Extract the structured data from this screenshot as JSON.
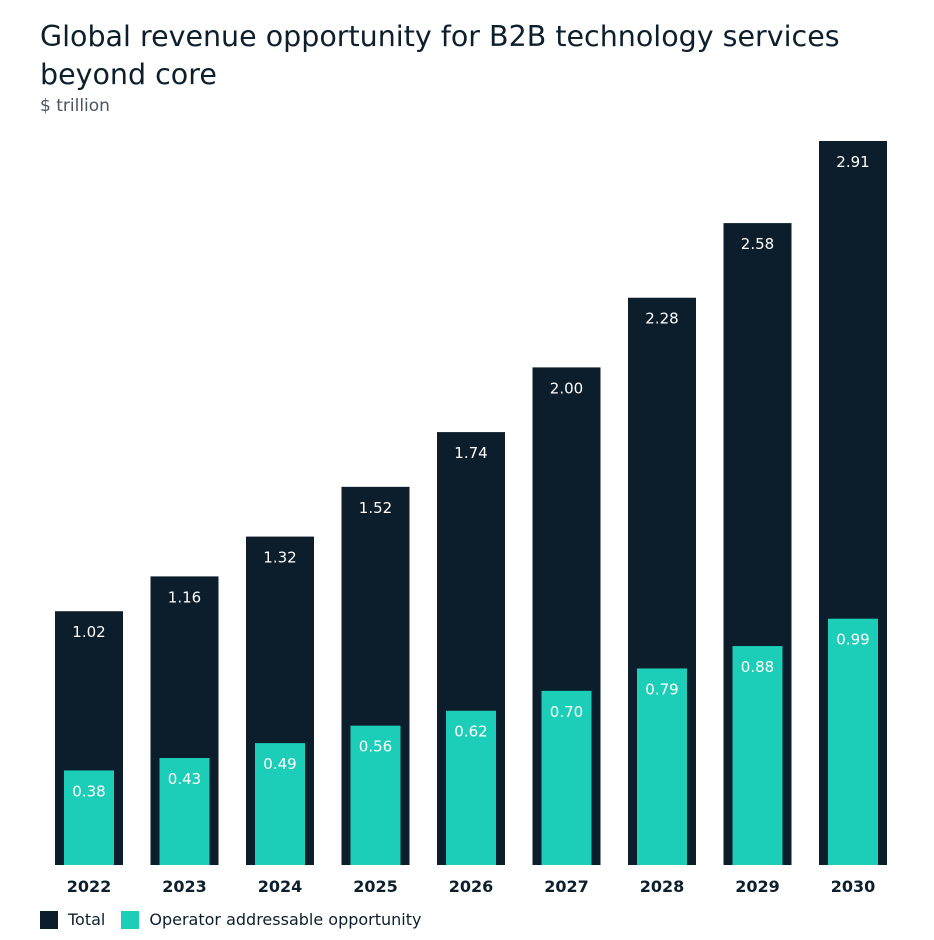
{
  "chart_data": {
    "type": "bar",
    "title": "Global revenue opportunity for B2B technology services beyond core",
    "subtitle": "$ trillion",
    "categories": [
      "2022",
      "2023",
      "2024",
      "2025",
      "2026",
      "2027",
      "2028",
      "2029",
      "2030"
    ],
    "series": [
      {
        "name": "Total",
        "values": [
          1.02,
          1.16,
          1.32,
          1.52,
          1.74,
          2.0,
          2.28,
          2.58,
          2.91
        ],
        "color": "#0c1e2c"
      },
      {
        "name": "Operator addressable opportunity",
        "values": [
          0.38,
          0.43,
          0.49,
          0.56,
          0.62,
          0.7,
          0.79,
          0.88,
          0.99
        ],
        "color": "#1ccdb8"
      }
    ],
    "ylim": [
      0,
      2.91
    ],
    "grid": false,
    "legend": "bottom-left"
  }
}
